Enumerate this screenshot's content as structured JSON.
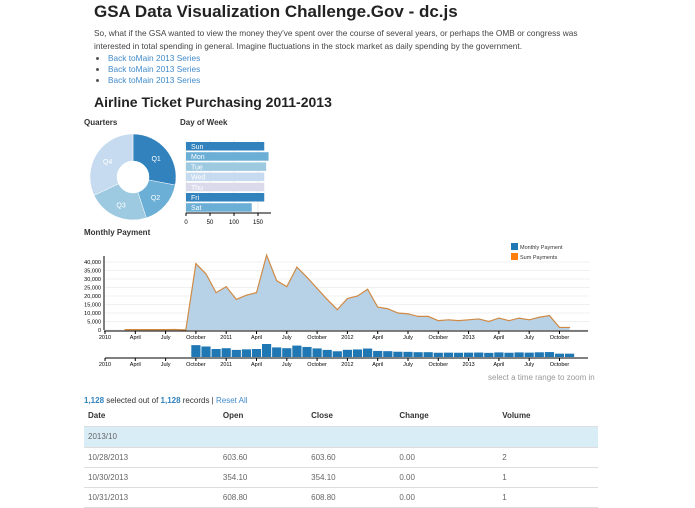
{
  "title": "GSA Data Visualization Challenge.Gov - dc.js",
  "intro": "So, what if the GSA wanted to view the money they've spent over the course of several years, or perhaps the OMB or congress was interested in total spending in general. Imagine fluctuations in the stock market as daily spending by the government.",
  "links": [
    "Back toMain 2013 Series",
    "Back toMain 2013 Series",
    "Back toMain 2013 Series"
  ],
  "section_title": "Airline Ticket Purchasing 2011-2013",
  "chart_data": [
    {
      "type": "pie",
      "title": "Quarters",
      "categories": [
        "Q1",
        "Q2",
        "Q3",
        "Q4"
      ],
      "values": [
        28,
        17,
        23,
        32
      ],
      "colors": [
        "#3182bd",
        "#6baed6",
        "#9ecae1",
        "#c6dbef"
      ]
    },
    {
      "type": "bar",
      "orientation": "horizontal",
      "title": "Day of Week",
      "categories": [
        "Sun",
        "Mon",
        "Tue",
        "Wed",
        "Thu",
        "Fri",
        "Sat"
      ],
      "values": [
        163,
        172,
        167,
        163,
        163,
        163,
        137
      ],
      "colors": [
        "#3182bd",
        "#6baed6",
        "#9ecae1",
        "#c6dbef",
        "#dadaeb",
        "#3182bd",
        "#6baed6"
      ],
      "xticks": [
        0,
        50,
        100,
        150
      ],
      "xlim": [
        0,
        175
      ]
    },
    {
      "type": "area",
      "title": "Monthly Payment",
      "legend": [
        "Monthly Payment",
        "Sum Payments"
      ],
      "legend_colors": [
        "#1f77b4",
        "#ff7f0e"
      ],
      "legend_position": "top-right",
      "grid": true,
      "x": [
        "2010-03",
        "2010-04",
        "2010-05",
        "2010-06",
        "2010-07",
        "2010-08",
        "2010-09",
        "2010-10",
        "2010-11",
        "2010-12",
        "2011-01",
        "2011-02",
        "2011-03",
        "2011-04",
        "2011-05",
        "2011-06",
        "2011-07",
        "2011-08",
        "2011-09",
        "2011-10",
        "2011-11",
        "2011-12",
        "2012-01",
        "2012-02",
        "2012-03",
        "2012-04",
        "2012-05",
        "2012-06",
        "2012-07",
        "2012-08",
        "2012-09",
        "2012-10",
        "2012-11",
        "2012-12",
        "2013-01",
        "2013-02",
        "2013-03",
        "2013-04",
        "2013-05",
        "2013-06",
        "2013-07",
        "2013-08",
        "2013-09",
        "2013-10",
        "2013-11"
      ],
      "values": [
        200,
        200,
        200,
        200,
        200,
        300,
        0,
        39000,
        33000,
        22000,
        25500,
        18000,
        20500,
        22000,
        44000,
        29000,
        25500,
        37000,
        31000,
        24500,
        18000,
        12000,
        18500,
        20000,
        24000,
        13500,
        12500,
        10000,
        9500,
        8000,
        8000,
        5500,
        6000,
        5500,
        6000,
        6500,
        5000,
        7000,
        5500,
        7000,
        6000,
        7500,
        8500,
        1500,
        1500
      ],
      "yticks": [
        0,
        5000,
        10000,
        15000,
        20000,
        25000,
        30000,
        35000,
        40000
      ],
      "ytick_labels": [
        "0",
        "5,000",
        "10,000",
        "15,000",
        "20,000",
        "25,000",
        "30,000",
        "35,000",
        "40,000"
      ],
      "xtick_labels": [
        "2010",
        "April",
        "July",
        "October",
        "2011",
        "April",
        "July",
        "October",
        "2012",
        "April",
        "July",
        "October",
        "2013",
        "April",
        "July",
        "October"
      ],
      "ylim": [
        0,
        45000
      ]
    },
    {
      "type": "bar",
      "title": "",
      "note": "range selector",
      "xtick_labels": [
        "2010",
        "April",
        "July",
        "October",
        "2011",
        "April",
        "July",
        "October",
        "2012",
        "April",
        "July",
        "October",
        "2013",
        "April",
        "July",
        "October"
      ]
    }
  ],
  "range_hint": "select a time range to zoom in",
  "count": {
    "selected": "1,128",
    "mid": " selected out of ",
    "total": "1,128",
    "suffix": " records | ",
    "reset": "Reset All"
  },
  "table": {
    "headers": [
      "Date",
      "Open",
      "Close",
      "Change",
      "Volume"
    ],
    "group": "2013/10",
    "rows": [
      [
        "10/28/2013",
        "603.60",
        "603.60",
        "0.00",
        "2"
      ],
      [
        "10/30/2013",
        "354.10",
        "354.10",
        "0.00",
        "1"
      ],
      [
        "10/31/2013",
        "608.80",
        "608.80",
        "0.00",
        "1"
      ]
    ]
  }
}
